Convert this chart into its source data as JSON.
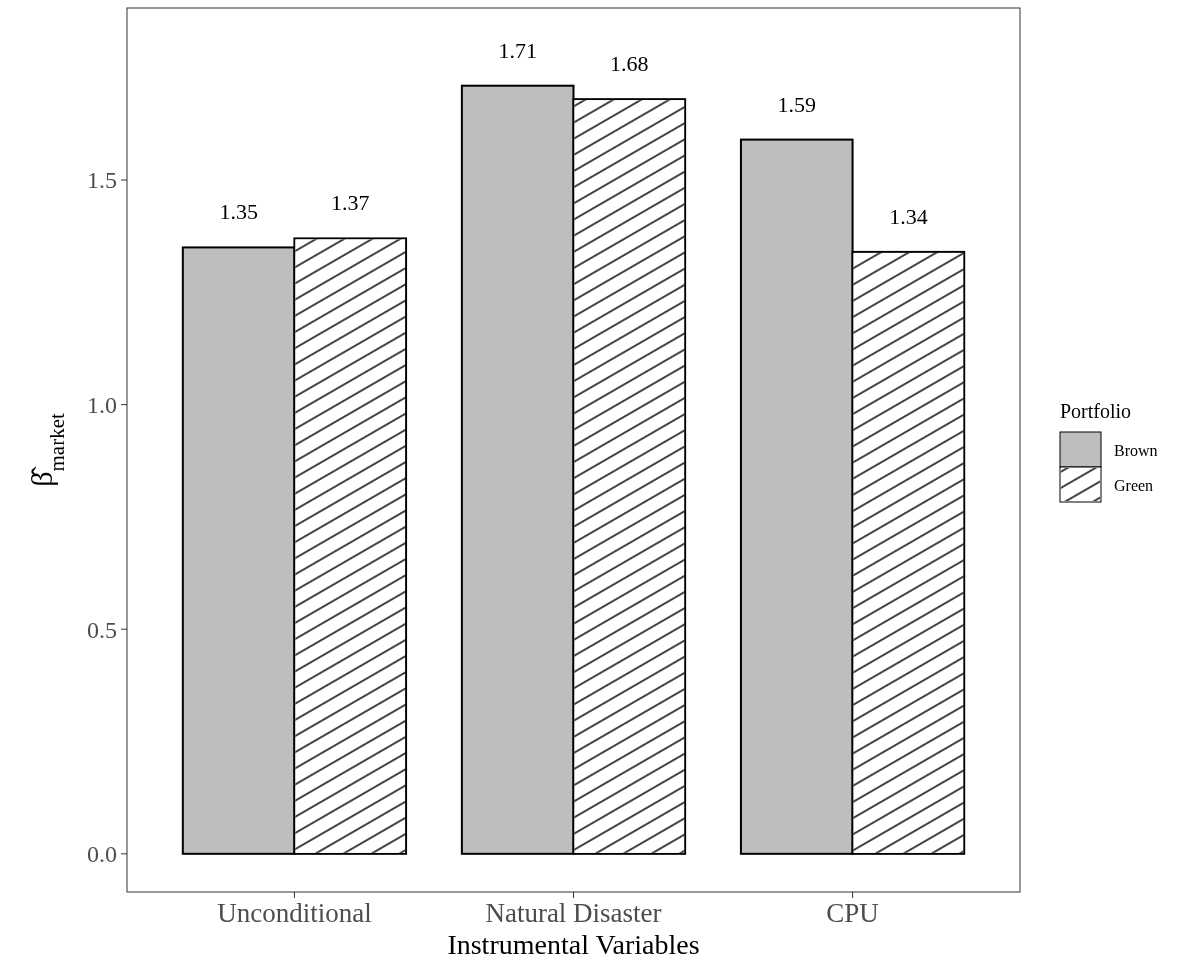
{
  "chart_data": {
    "type": "bar",
    "xlabel": "Instrumental Variables",
    "ylabel": "β̂$_{market}$",
    "legend_title": "Portfolio",
    "categories": [
      "Unconditional",
      "Natural Disaster",
      "CPU"
    ],
    "series": [
      {
        "name": "Brown",
        "color": "#bebebe",
        "values": [
          1.35,
          1.71,
          1.59
        ]
      },
      {
        "name": "Green",
        "color": "#ffffff",
        "values": [
          1.37,
          1.68,
          1.34
        ]
      }
    ],
    "ylim": [
      -0.085,
      1.883
    ],
    "yticks": [
      {
        "value": 0,
        "label": "0.0"
      },
      {
        "value": 0.5,
        "label": "0.5"
      },
      {
        "value": 1,
        "label": "1.0"
      },
      {
        "value": 1.5,
        "label": "1.5"
      }
    ],
    "data_labels": true,
    "legend": "right",
    "grid": false
  }
}
